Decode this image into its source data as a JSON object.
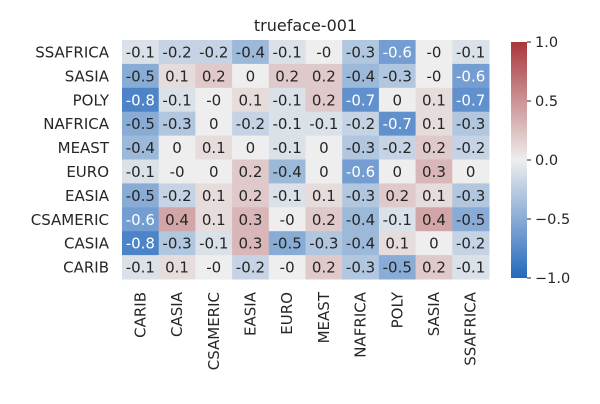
{
  "chart_data": {
    "type": "heatmap",
    "title": "trueface-001",
    "x_categories": [
      "CARIB",
      "CASIA",
      "CSAMERIC",
      "EASIA",
      "EURO",
      "MEAST",
      "NAFRICA",
      "POLY",
      "SASIA",
      "SSAFRICA"
    ],
    "y_categories": [
      "SSAFRICA",
      "SASIA",
      "POLY",
      "NAFRICA",
      "MEAST",
      "EURO",
      "EASIA",
      "CSAMERIC",
      "CASIA",
      "CARIB"
    ],
    "values": [
      [
        -0.1,
        -0.2,
        -0.2,
        -0.4,
        -0.1,
        -0.0,
        -0.3,
        -0.6,
        -0.0,
        -0.1
      ],
      [
        -0.5,
        0.1,
        0.2,
        0.0,
        0.2,
        0.2,
        -0.4,
        -0.3,
        -0.0,
        -0.6
      ],
      [
        -0.8,
        -0.1,
        -0.0,
        0.1,
        -0.1,
        0.2,
        -0.7,
        0.0,
        0.1,
        -0.7
      ],
      [
        -0.5,
        -0.3,
        0.0,
        -0.2,
        -0.1,
        -0.1,
        -0.2,
        -0.7,
        0.1,
        -0.3
      ],
      [
        -0.4,
        0.0,
        0.1,
        0.0,
        -0.1,
        0.0,
        -0.3,
        -0.2,
        0.2,
        -0.2
      ],
      [
        -0.1,
        -0.0,
        0.0,
        0.2,
        -0.4,
        0.0,
        -0.6,
        0.0,
        0.3,
        0.0
      ],
      [
        -0.5,
        -0.2,
        0.1,
        0.2,
        -0.1,
        0.1,
        -0.3,
        0.2,
        0.1,
        -0.3
      ],
      [
        -0.6,
        0.4,
        0.1,
        0.3,
        -0.0,
        0.2,
        -0.4,
        -0.1,
        0.4,
        -0.5
      ],
      [
        -0.8,
        -0.3,
        -0.1,
        0.3,
        -0.5,
        -0.3,
        -0.4,
        0.1,
        0.0,
        -0.2
      ],
      [
        -0.1,
        0.1,
        -0.0,
        -0.2,
        -0.0,
        0.2,
        -0.3,
        -0.5,
        0.2,
        -0.1
      ]
    ],
    "cell_labels": [
      [
        "-0.1",
        "-0.2",
        "-0.2",
        "-0.4",
        "-0.1",
        "-0",
        "-0.3",
        "-0.6",
        "-0",
        "-0.1"
      ],
      [
        "-0.5",
        "0.1",
        "0.2",
        "0",
        "0.2",
        "0.2",
        "-0.4",
        "-0.3",
        "-0",
        "-0.6"
      ],
      [
        "-0.8",
        "-0.1",
        "-0",
        "0.1",
        "-0.1",
        "0.2",
        "-0.7",
        "0",
        "0.1",
        "-0.7"
      ],
      [
        "-0.5",
        "-0.3",
        "0",
        "-0.2",
        "-0.1",
        "-0.1",
        "-0.2",
        "-0.7",
        "0.1",
        "-0.3"
      ],
      [
        "-0.4",
        "0",
        "0.1",
        "0",
        "-0.1",
        "0",
        "-0.3",
        "-0.2",
        "0.2",
        "-0.2"
      ],
      [
        "-0.1",
        "-0",
        "0",
        "0.2",
        "-0.4",
        "0",
        "-0.6",
        "0",
        "0.3",
        "0"
      ],
      [
        "-0.5",
        "-0.2",
        "0.1",
        "0.2",
        "-0.1",
        "0.1",
        "-0.3",
        "0.2",
        "0.1",
        "-0.3"
      ],
      [
        "-0.6",
        "0.4",
        "0.1",
        "0.3",
        "-0",
        "0.2",
        "-0.4",
        "-0.1",
        "0.4",
        "-0.5"
      ],
      [
        "-0.8",
        "-0.3",
        "-0.1",
        "0.3",
        "-0.5",
        "-0.3",
        "-0.4",
        "0.1",
        "0",
        "-0.2"
      ],
      [
        "-0.1",
        "0.1",
        "-0",
        "-0.2",
        "-0",
        "0.2",
        "-0.3",
        "-0.5",
        "0.2",
        "-0.1"
      ]
    ],
    "vmin": -1.0,
    "vmax": 1.0,
    "colormap": "vlag",
    "colorbar_ticks": [
      -1.0,
      -0.5,
      0.0,
      0.5,
      1.0
    ],
    "colorbar_tick_labels": [
      "−1.0",
      "−0.5",
      "0.0",
      "0.5",
      "1.0"
    ],
    "colors": {
      "negative": "#2369bd",
      "neutral": "#eeeeee",
      "positive": "#a9373b",
      "text": "#262626"
    },
    "grid": false,
    "colorbar_position": "right"
  }
}
